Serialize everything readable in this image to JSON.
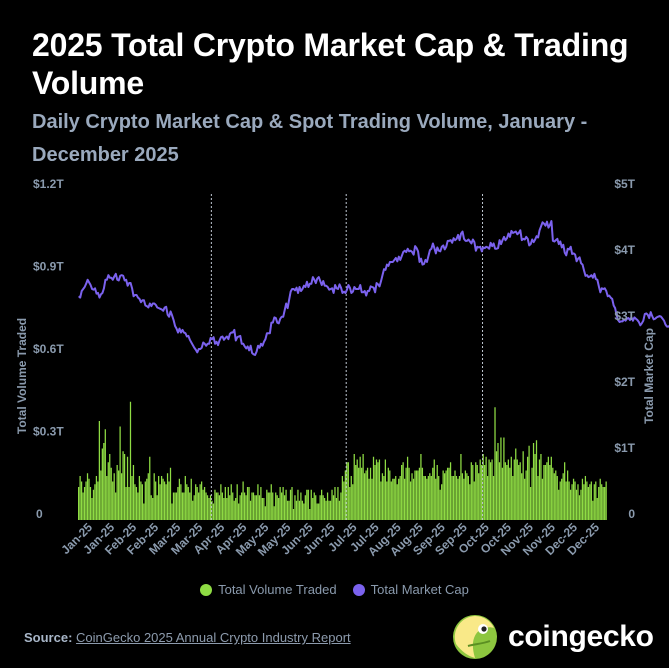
{
  "title": "2025 Total Crypto Market Cap & Trading Volume",
  "subtitle": "Daily Crypto Market Cap & Spot Trading Volume, January - December 2025",
  "colors": {
    "background": "#000000",
    "volume": "#8fdc44",
    "market_cap": "#7b62ee",
    "muted_text": "#8a9aad",
    "subtitle": "#9aa9bd",
    "source_label": "#a8b6c8",
    "source_text": "#8d9bad",
    "divider": "#bfc7d2"
  },
  "legend": {
    "volume": "Total Volume Traded",
    "market_cap": "Total Market Cap"
  },
  "footer": {
    "source_label": "Source:",
    "source_text": "CoinGecko 2025 Annual Crypto Industry Report"
  },
  "brand": {
    "name": "coingecko",
    "icon": "gecko-logo-icon"
  },
  "chart_data": {
    "type": "bar+line",
    "left_axis": {
      "label": "Total Volume Traded",
      "ticks": [
        "0",
        "$0.3T",
        "$0.6T",
        "$0.9T",
        "$1.2T"
      ],
      "range": [
        0,
        1.2
      ],
      "unit": "T"
    },
    "right_axis": {
      "label": "Total Market Cap",
      "ticks": [
        "0",
        "$1T",
        "$2T",
        "$3T",
        "$4T",
        "$5T"
      ],
      "range": [
        0,
        5
      ],
      "unit": "T"
    },
    "x_axis": {
      "start": "2025-01-01",
      "end": "2025-12-31",
      "tick_labels": [
        "Jan-25",
        "Jan-25",
        "Feb-25",
        "Feb-25",
        "Mar-25",
        "Mar-25",
        "Apr-25",
        "Apr-25",
        "May-25",
        "May-25",
        "Jun-25",
        "Jun-25",
        "Jul-25",
        "Jul-25",
        "Aug-25",
        "Aug-25",
        "Sep-25",
        "Sep-25",
        "Oct-25",
        "Oct-25",
        "Nov-25",
        "Nov-25",
        "Dec-25",
        "Dec-25"
      ]
    },
    "dividers": [
      "2025-04-01",
      "2025-07-01",
      "2025-10-01"
    ],
    "grid": false,
    "legend_position": "bottom",
    "series": [
      {
        "name": "Total Volume Traded",
        "type": "bar",
        "axis": "left",
        "unit": "T",
        "note": "daily values, 1 Jan 2025 – 31 Dec 2025",
        "values": [
          0.12,
          0.16,
          0.14,
          0.1,
          0.12,
          0.14,
          0.17,
          0.15,
          0.12,
          0.08,
          0.11,
          0.13,
          0.16,
          0.14,
          0.36,
          0.18,
          0.26,
          0.28,
          0.33,
          0.16,
          0.21,
          0.24,
          0.19,
          0.14,
          0.17,
          0.1,
          0.2,
          0.18,
          0.34,
          0.17,
          0.25,
          0.24,
          0.12,
          0.23,
          0.12,
          0.43,
          0.16,
          0.2,
          0.13,
          0.12,
          0.1,
          0.16,
          0.14,
          0.13,
          0.06,
          0.14,
          0.15,
          0.17,
          0.23,
          0.09,
          0.08,
          0.17,
          0.14,
          0.09,
          0.16,
          0.13,
          0.16,
          0.15,
          0.14,
          0.13,
          0.17,
          0.14,
          0.19,
          0.06,
          0.1,
          0.1,
          0.1,
          0.12,
          0.15,
          0.13,
          0.1,
          0.1,
          0.16,
          0.13,
          0.12,
          0.1,
          0.15,
          0.07,
          0.09,
          0.13,
          0.12,
          0.1,
          0.13,
          0.14,
          0.11,
          0.12,
          0.1,
          0.09,
          0.08,
          0.09,
          0.07,
          0.06,
          0.11,
          0.1,
          0.1,
          0.09,
          0.13,
          0.1,
          0.08,
          0.12,
          0.08,
          0.12,
          0.09,
          0.13,
          0.1,
          0.07,
          0.08,
          0.13,
          0.06,
          0.09,
          0.1,
          0.14,
          0.1,
          0.09,
          0.12,
          0.12,
          0.07,
          0.1,
          0.1,
          0.09,
          0.09,
          0.13,
          0.09,
          0.12,
          0.08,
          0.08,
          0.05,
          0.11,
          0.1,
          0.1,
          0.13,
          0.1,
          0.05,
          0.1,
          0.09,
          0.08,
          0.12,
          0.1,
          0.12,
          0.09,
          0.11,
          0.07,
          0.07,
          0.11,
          0.12,
          0.04,
          0.09,
          0.07,
          0.11,
          0.07,
          0.1,
          0.07,
          0.06,
          0.09,
          0.11,
          0.11,
          0.04,
          0.11,
          0.08,
          0.1,
          0.09,
          0.06,
          0.06,
          0.09,
          0.11,
          0.09,
          0.08,
          0.07,
          0.1,
          0.07,
          0.07,
          0.11,
          0.09,
          0.12,
          0.08,
          0.12,
          0.07,
          0.1,
          0.16,
          0.14,
          0.18,
          0.21,
          0.21,
          0.12,
          0.16,
          0.13,
          0.24,
          0.2,
          0.22,
          0.19,
          0.23,
          0.19,
          0.24,
          0.17,
          0.18,
          0.19,
          0.15,
          0.19,
          0.15,
          0.23,
          0.2,
          0.22,
          0.21,
          0.22,
          0.14,
          0.17,
          0.16,
          0.22,
          0.14,
          0.19,
          0.18,
          0.14,
          0.15,
          0.15,
          0.16,
          0.13,
          0.15,
          0.16,
          0.2,
          0.21,
          0.15,
          0.19,
          0.23,
          0.19,
          0.14,
          0.17,
          0.15,
          0.18,
          0.18,
          0.18,
          0.19,
          0.24,
          0.19,
          0.16,
          0.16,
          0.15,
          0.16,
          0.17,
          0.16,
          0.19,
          0.22,
          0.15,
          0.2,
          0.16,
          0.11,
          0.13,
          0.18,
          0.17,
          0.18,
          0.19,
          0.19,
          0.21,
          0.16,
          0.16,
          0.18,
          0.16,
          0.15,
          0.16,
          0.24,
          0.17,
          0.15,
          0.18,
          0.17,
          0.16,
          0.13,
          0.21,
          0.2,
          0.14,
          0.21,
          0.2,
          0.17,
          0.22,
          0.2,
          0.24,
          0.2,
          0.23,
          0.16,
          0.22,
          0.21,
          0.22,
          0.16,
          0.41,
          0.25,
          0.28,
          0.21,
          0.3,
          0.19,
          0.3,
          0.21,
          0.2,
          0.22,
          0.19,
          0.23,
          0.16,
          0.22,
          0.26,
          0.22,
          0.2,
          0.21,
          0.17,
          0.25,
          0.15,
          0.18,
          0.23,
          0.27,
          0.12,
          0.19,
          0.28,
          0.24,
          0.29,
          0.16,
          0.22,
          0.24,
          0.15,
          0.2,
          0.2,
          0.21,
          0.23,
          0.2,
          0.23,
          0.19,
          0.17,
          0.18,
          0.16,
          0.11,
          0.14,
          0.15,
          0.17,
          0.21,
          0.14,
          0.18,
          0.14,
          0.11,
          0.13,
          0.15,
          0.14,
          0.11,
          0.13,
          0.09,
          0.11,
          0.15,
          0.13,
          0.16,
          0.14,
          0.12,
          0.13,
          0.14,
          0.07,
          0.13,
          0.14,
          0.08,
          0.12,
          0.15,
          0.13,
          0.12,
          0.12,
          0.14
        ]
      },
      {
        "name": "Total Market Cap",
        "type": "line",
        "axis": "right",
        "unit": "T",
        "note": "daily values, 1 Jan 2025 – 31 Dec 2025",
        "values": [
          3.39,
          3.37,
          3.47,
          3.5,
          3.53,
          3.58,
          3.64,
          3.6,
          3.56,
          3.5,
          3.49,
          3.51,
          3.43,
          3.44,
          3.37,
          3.42,
          3.44,
          3.51,
          3.64,
          3.64,
          3.71,
          3.67,
          3.67,
          3.64,
          3.69,
          3.73,
          3.64,
          3.63,
          3.7,
          3.71,
          3.7,
          3.63,
          3.64,
          3.55,
          3.59,
          3.59,
          3.51,
          3.39,
          3.41,
          3.41,
          3.37,
          3.35,
          3.3,
          3.33,
          3.33,
          3.25,
          3.24,
          3.22,
          3.28,
          3.24,
          3.28,
          3.28,
          3.26,
          3.22,
          3.21,
          3.2,
          3.19,
          3.17,
          3.22,
          3.23,
          3.11,
          3.08,
          3.16,
          3.1,
          3.03,
          2.94,
          2.9,
          2.84,
          2.9,
          2.84,
          2.88,
          2.84,
          2.83,
          2.78,
          2.79,
          2.73,
          2.69,
          2.65,
          2.61,
          2.58,
          2.54,
          2.59,
          2.59,
          2.61,
          2.69,
          2.67,
          2.64,
          2.67,
          2.67,
          2.76,
          2.74,
          2.77,
          2.67,
          2.7,
          2.65,
          2.72,
          2.77,
          2.78,
          2.73,
          2.76,
          2.78,
          2.74,
          2.82,
          2.84,
          2.84,
          2.88,
          2.72,
          2.77,
          2.78,
          2.79,
          2.67,
          2.67,
          2.63,
          2.6,
          2.63,
          2.57,
          2.64,
          2.53,
          2.51,
          2.5,
          2.55,
          2.64,
          2.61,
          2.67,
          2.64,
          2.7,
          2.74,
          2.83,
          2.83,
          2.83,
          2.99,
          2.99,
          3.07,
          3.06,
          2.99,
          2.98,
          3.05,
          3.08,
          3.08,
          3.18,
          3.28,
          3.21,
          3.34,
          3.46,
          3.5,
          3.5,
          3.48,
          3.52,
          3.44,
          3.53,
          3.47,
          3.5,
          3.55,
          3.53,
          3.61,
          3.53,
          3.58,
          3.58,
          3.68,
          3.64,
          3.59,
          3.66,
          3.68,
          3.62,
          3.56,
          3.62,
          3.55,
          3.55,
          3.53,
          3.49,
          3.5,
          3.51,
          3.44,
          3.56,
          3.51,
          3.5,
          3.57,
          3.52,
          3.44,
          3.46,
          3.44,
          3.49,
          3.56,
          3.52,
          3.44,
          3.46,
          3.53,
          3.5,
          3.5,
          3.5,
          3.56,
          3.45,
          3.45,
          3.47,
          3.4,
          3.47,
          3.47,
          3.54,
          3.53,
          3.52,
          3.45,
          3.59,
          3.57,
          3.54,
          3.62,
          3.71,
          3.8,
          3.79,
          3.87,
          3.85,
          3.91,
          3.91,
          3.91,
          3.94,
          3.97,
          3.92,
          3.99,
          3.94,
          4.0,
          4.06,
          4.08,
          4.06,
          4.11,
          4.07,
          4.08,
          4.06,
          4.02,
          4.15,
          4.12,
          4.07,
          3.91,
          3.96,
          3.87,
          3.88,
          3.94,
          3.91,
          4.0,
          4.09,
          4.11,
          4.19,
          4.12,
          4.04,
          4.13,
          4.08,
          4.07,
          4.14,
          4.16,
          4.1,
          4.14,
          4.23,
          4.23,
          4.24,
          4.2,
          4.27,
          4.24,
          4.26,
          4.32,
          4.24,
          4.34,
          4.37,
          4.26,
          4.23,
          4.23,
          4.25,
          4.22,
          4.19,
          4.25,
          4.21,
          4.08,
          4.14,
          4.13,
          4.14,
          4.07,
          4.13,
          4.12,
          4.14,
          4.13,
          4.11,
          4.2,
          4.15,
          4.19,
          4.11,
          4.11,
          4.12,
          4.24,
          4.18,
          4.24,
          4.29,
          4.24,
          4.27,
          4.34,
          4.29,
          4.38,
          4.35,
          4.36,
          4.37,
          4.33,
          4.35,
          4.39,
          4.24,
          4.26,
          4.25,
          4.29,
          4.26,
          4.16,
          4.18,
          4.25,
          4.21,
          4.25,
          4.3,
          4.28,
          4.39,
          4.45,
          4.51,
          4.49,
          4.46,
          4.52,
          4.43,
          4.47,
          4.53,
          4.23,
          4.22,
          4.24,
          4.26,
          4.18,
          4.22,
          4.13,
          4.17,
          4.05,
          4.01,
          4.11,
          4.1,
          4.14,
          4.03,
          4.04,
          4.02,
          3.92,
          3.96,
          3.98,
          3.89,
          3.87,
          3.78,
          3.7,
          3.71,
          3.68,
          3.69,
          3.71,
          3.67,
          3.73,
          3.65,
          3.64,
          3.54,
          3.45,
          3.51,
          3.5,
          3.51,
          3.47,
          3.39,
          3.4,
          3.37,
          3.35,
          3.25,
          3.21,
          3.1,
          3.03,
          3.0,
          3.01,
          3.01,
          3.04,
          3.02,
          3.05,
          3.06,
          3.03,
          3.07,
          3.02,
          3.07,
          3.05,
          3.03,
          3.0,
          2.95,
          2.98,
          3.02,
          3.12,
          3.13,
          3.11,
          3.06,
          3.15,
          3.09,
          3.04,
          3.05,
          3.07,
          3.08,
          3.09,
          3.08,
          3.05,
          3.02,
          2.96,
          2.93,
          2.93,
          2.95,
          2.96,
          2.94,
          2.93,
          2.98,
          2.97,
          2.99,
          2.97,
          2.97,
          2.98,
          2.97
        ]
      }
    ]
  }
}
